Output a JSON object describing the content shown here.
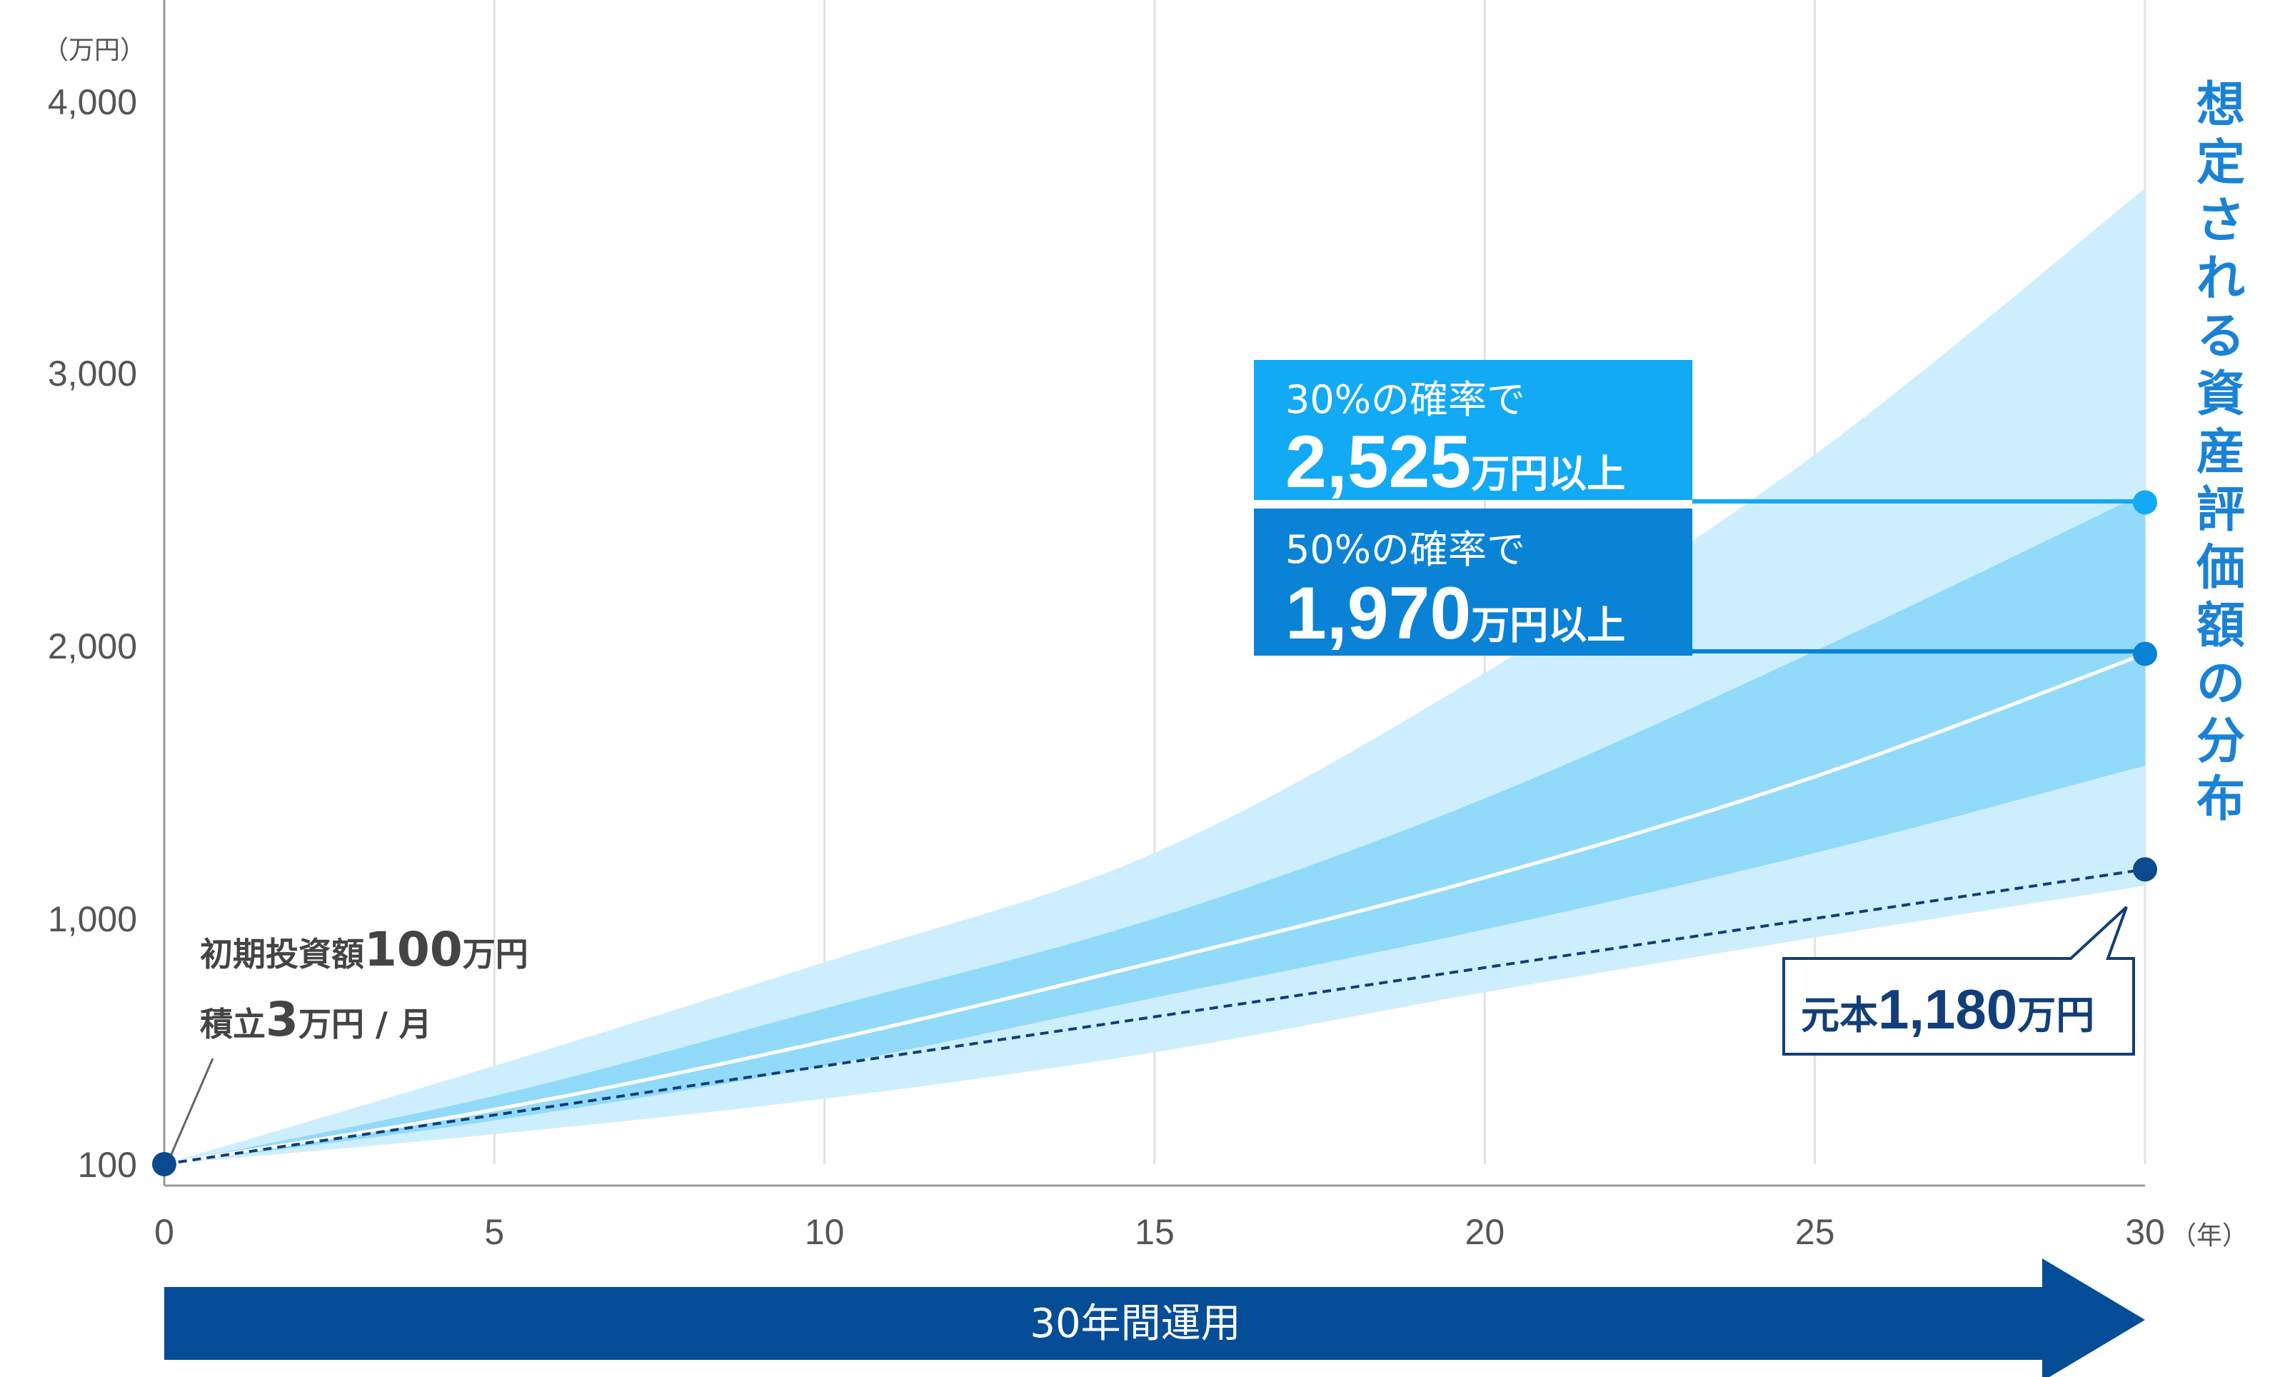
{
  "chart_data": {
    "type": "area",
    "x": [
      0,
      5,
      10,
      15,
      20,
      25,
      30
    ],
    "ylabel": "（万円）",
    "xlabel": "（年）",
    "xlim": [
      0,
      30
    ],
    "ylim": [
      100,
      4000
    ],
    "y_ticks": [
      {
        "value": 100,
        "label": "100"
      },
      {
        "value": 1000,
        "label": "1,000"
      },
      {
        "value": 2000,
        "label": "2,000"
      },
      {
        "value": 3000,
        "label": "3,000"
      },
      {
        "value": 4000,
        "label": "4,000"
      }
    ],
    "x_ticks": [
      "0",
      "5",
      "10",
      "15",
      "20",
      "25",
      "30"
    ],
    "grid": "vertical",
    "bands": [
      {
        "upper": [
          100,
          460,
          840,
          1240,
          1900,
          2700,
          3680
        ],
        "lower": [
          100,
          210,
          340,
          510,
          730,
          930,
          1120
        ],
        "color": "#cdeefd"
      },
      {
        "upper": [
          100,
          350,
          670,
          1000,
          1440,
          1980,
          2560
        ],
        "lower": [
          100,
          260,
          460,
          710,
          960,
          1240,
          1560
        ],
        "color": "#92daf9"
      }
    ],
    "series": [
      {
        "values": [
          100,
          300,
          550,
          840,
          1150,
          1520,
          1970
        ],
        "color": "#ffffff",
        "style": "solid"
      },
      {
        "values": [
          100,
          280,
          460,
          640,
          820,
          1000,
          1180
        ],
        "color": "#123f7a",
        "style": "dashed"
      }
    ],
    "markers": [
      {
        "x": 0,
        "y": 100,
        "color": "#0b4a8c"
      },
      {
        "x": 30,
        "y": 2525,
        "color": "#12a9f5"
      },
      {
        "x": 30,
        "y": 1970,
        "color": "#0a82d6"
      },
      {
        "x": 30,
        "y": 1180,
        "color": "#0b4a8c"
      }
    ],
    "annotations": {
      "initial": {
        "line1_a": "初期投資額",
        "line1_b": "100",
        "line1_c": "万円",
        "line2_a": "積立",
        "line2_b": "3",
        "line2_c": "万円 / 月"
      },
      "p30": {
        "line1": "30%の確率で",
        "value": "2,525",
        "suffix": "万円以上",
        "color": "#12a9f5"
      },
      "p50": {
        "line1": "50%の確率で",
        "value": "1,970",
        "suffix": "万円以上",
        "color": "#0a82d6"
      },
      "principal": {
        "prefix": "元本",
        "value": "1,180",
        "suffix": "万円"
      },
      "period": "30年間運用",
      "title_vertical": "想定される資産評価額の分布"
    }
  }
}
